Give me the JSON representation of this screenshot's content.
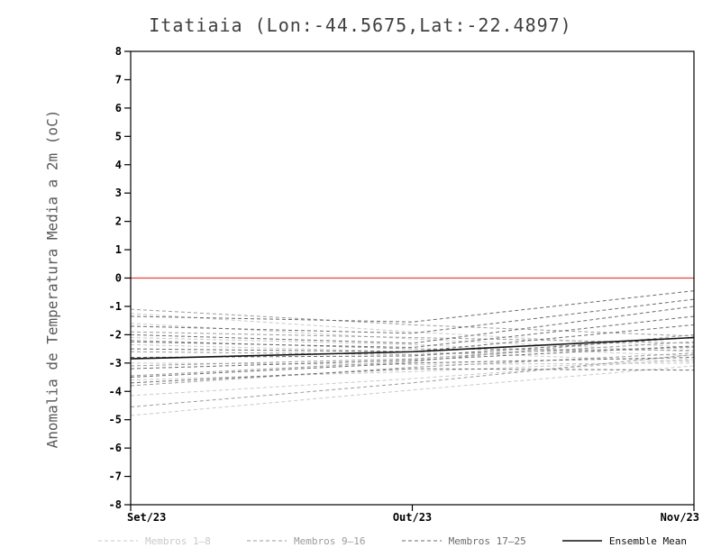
{
  "title": "Itatiaia (Lon:-44.5675,Lat:-22.4897)",
  "chart_data": {
    "type": "line",
    "title": "Itatiaia (Lon:-44.5675,Lat:-22.4897)",
    "xlabel": "",
    "ylabel": "Anomalia de Temperatura Media a 2m (oC)",
    "x_ticks": [
      "Set/23",
      "Out/23",
      "Nov/23"
    ],
    "ylim": [
      -8,
      8
    ],
    "y_ticks": [
      8,
      7,
      6,
      5,
      4,
      3,
      2,
      1,
      0,
      -1,
      -2,
      -3,
      -4,
      -5,
      -6,
      -7,
      -8
    ],
    "grid": false,
    "legend_position": "bottom",
    "zero_line": {
      "y": 0,
      "color": "#e8403a"
    },
    "frame_color": "#000000",
    "groups": [
      {
        "name": "Membros 1-8",
        "label": "Membros 1–8",
        "color": "#c9c9c9",
        "dash": "4 3",
        "width": 1,
        "series": [
          [
            -1.25,
            -1.9,
            -2.45
          ],
          [
            -1.6,
            -2.15,
            -2.6
          ],
          [
            -2.1,
            -2.35,
            -2.75
          ],
          [
            -2.35,
            -2.6,
            -2.95
          ],
          [
            -3.0,
            -3.05,
            -3.0
          ],
          [
            -3.6,
            -3.3,
            -2.9
          ],
          [
            -4.15,
            -3.55,
            -2.85
          ],
          [
            -4.85,
            -3.95,
            -3.1
          ]
        ]
      },
      {
        "name": "Membros 9-16",
        "label": "Membros 9–16",
        "color": "#9b9b9b",
        "dash": "4 3",
        "width": 1,
        "series": [
          [
            -1.1,
            -1.65,
            -2.05
          ],
          [
            -1.9,
            -2.1,
            -2.3
          ],
          [
            -2.2,
            -2.5,
            -2.55
          ],
          [
            -2.6,
            -2.7,
            -2.45
          ],
          [
            -3.1,
            -2.85,
            -2.25
          ],
          [
            -3.45,
            -2.95,
            -2.0
          ],
          [
            -3.8,
            -3.15,
            -2.65
          ],
          [
            -4.55,
            -3.7,
            -2.7
          ]
        ]
      },
      {
        "name": "Membros 17-25",
        "label": "Membros 17–25",
        "color": "#6b6b6b",
        "dash": "4 3",
        "width": 1,
        "series": [
          [
            -1.35,
            -1.55,
            -0.45
          ],
          [
            -1.7,
            -1.95,
            -0.75
          ],
          [
            -2.0,
            -2.3,
            -1.0
          ],
          [
            -2.25,
            -2.45,
            -1.35
          ],
          [
            -2.5,
            -2.6,
            -1.65
          ],
          [
            -2.8,
            -2.75,
            -2.1
          ],
          [
            -3.2,
            -2.9,
            -2.4
          ],
          [
            -3.5,
            -3.0,
            -2.8
          ],
          [
            -3.7,
            -3.2,
            -3.25
          ]
        ]
      },
      {
        "name": "Ensemble Mean",
        "label": "Ensemble Mean",
        "color": "#111111",
        "dash": null,
        "width": 1.6,
        "series": [
          [
            -2.85,
            -2.6,
            -2.1
          ]
        ]
      }
    ]
  }
}
